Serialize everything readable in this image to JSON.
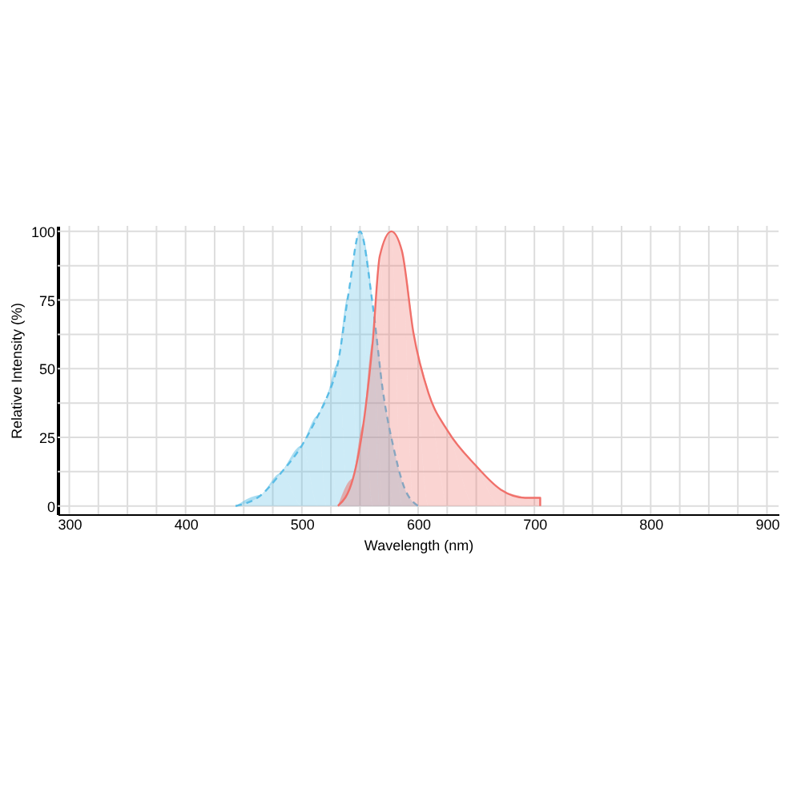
{
  "chart_data": {
    "type": "area",
    "xlabel": "Wavelength (nm)",
    "ylabel": "Relative Intensity (%)",
    "xlim": [
      290,
      910
    ],
    "xticks": [
      300,
      {
        "value": 325,
        "label": null
      },
      {
        "value": 350,
        "label": null
      },
      {
        "value": 375,
        "label": null
      },
      400,
      {
        "value": 425,
        "label": null
      },
      {
        "value": 450,
        "label": null
      },
      {
        "value": 475,
        "label": null
      },
      500,
      {
        "value": 525,
        "label": null
      },
      {
        "value": 550,
        "label": null
      },
      {
        "value": 575,
        "label": null
      },
      600,
      {
        "value": 625,
        "label": null
      },
      {
        "value": 650,
        "label": null
      },
      {
        "value": 675,
        "label": null
      },
      700,
      {
        "value": 725,
        "label": null
      },
      {
        "value": 750,
        "label": null
      },
      {
        "value": 775,
        "label": null
      },
      800,
      {
        "value": 825,
        "label": null
      },
      {
        "value": 850,
        "label": null
      },
      {
        "value": 875,
        "label": null
      },
      900
    ],
    "ylim": [
      -3,
      102
    ],
    "yticks": [
      0,
      {
        "value": 12.5,
        "label": null
      },
      25,
      {
        "value": 37.5,
        "label": null
      },
      50,
      {
        "value": 62.5,
        "label": null
      },
      75,
      {
        "value": 87.5,
        "label": null
      },
      100
    ],
    "grid": true,
    "series": [
      {
        "color": "#5bbde6",
        "line_style": "dashed",
        "x": [
          443,
          465,
          482,
          500,
          514,
          521,
          531,
          540,
          550,
          561,
          570,
          579,
          587,
          600
        ],
        "values": [
          0,
          4,
          12,
          22,
          33,
          39,
          52,
          77,
          100,
          73,
          41,
          21,
          8,
          0
        ]
      },
      {
        "color": "#f0706a",
        "line_style": "solid",
        "x": [
          531,
          544,
          553,
          561,
          567,
          577,
          586,
          596,
          609,
          626,
          649,
          671,
          692,
          705,
          705
        ],
        "values": [
          0,
          10,
          30,
          60,
          91,
          100,
          93,
          63,
          41,
          27,
          15,
          6,
          3,
          3,
          0
        ]
      }
    ]
  }
}
